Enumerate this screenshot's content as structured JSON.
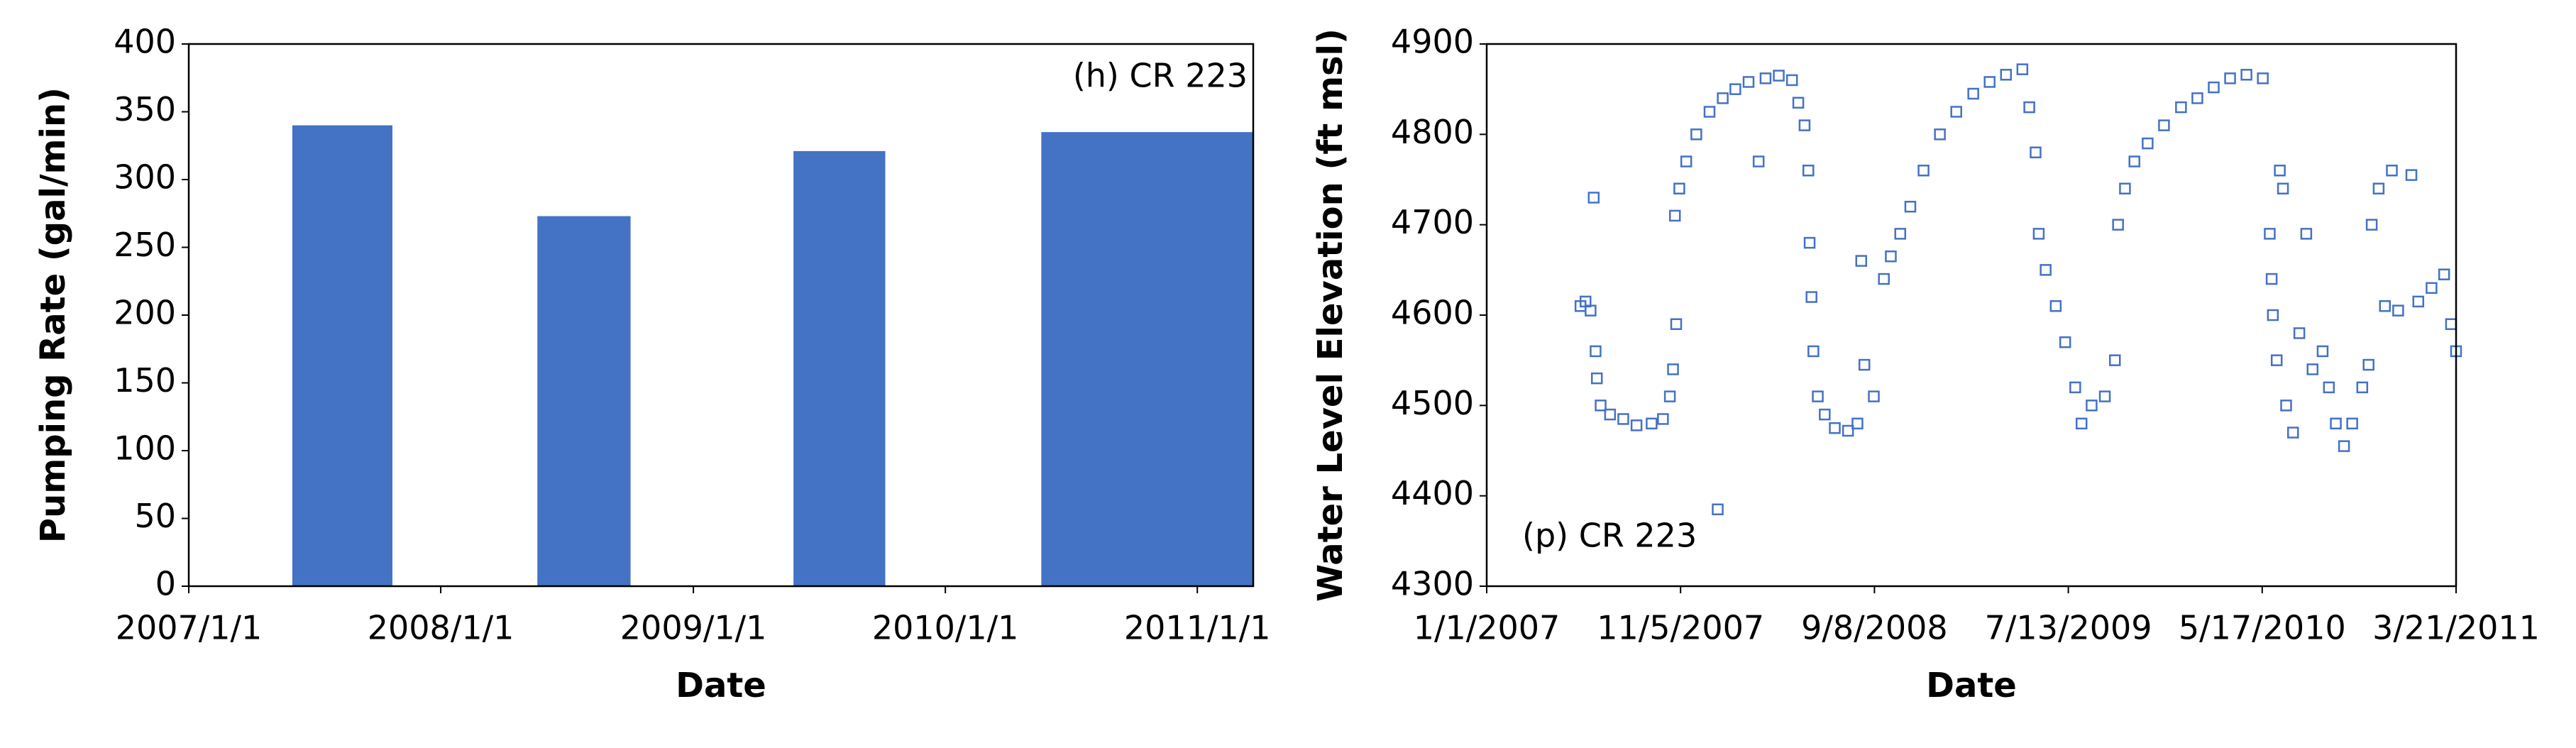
{
  "chart_data": [
    {
      "type": "bar",
      "annotation": "(h) CR 223",
      "xlabel": "Date",
      "ylabel": "Pumping Rate (gal/min)",
      "x_start": [
        "2007/5/31",
        "2008/5/20",
        "2009/5/26",
        "2010/5/20"
      ],
      "x_end": [
        "2007/10/23",
        "2008/10/2",
        "2009/10/6",
        "2011/3/23"
      ],
      "values": [
        340,
        273,
        321,
        335
      ],
      "color": "#4472c4",
      "xlim": [
        "2007/1/1",
        "2011/3/23"
      ],
      "xticks": [
        "2007/1/1",
        "2008/1/1",
        "2009/1/1",
        "2010/1/1",
        "2011/1/1"
      ],
      "ylim": [
        0,
        400
      ],
      "yticks": [
        0,
        50,
        100,
        150,
        200,
        250,
        300,
        350,
        400
      ],
      "grid": false
    },
    {
      "type": "scatter",
      "annotation": "(p) CR 223",
      "xlabel": "Date",
      "ylabel": "Water Level Elevation (ft msl)",
      "color": "#4472c4",
      "x": [
        "5/30/2007",
        "6/7/2007",
        "6/15/2007",
        "6/20/2007",
        "6/23/2007",
        "6/25/2007",
        "7/1/2007",
        "7/16/2007",
        "8/6/2007",
        "8/27/2007",
        "9/20/2007",
        "10/8/2007",
        "10/19/2007",
        "10/24/2007",
        "10/29/2007",
        "10/27/2007",
        "11/3/2007",
        "11/14/2007",
        "11/30/2007",
        "12/21/2007",
        "1/3/2008",
        "1/11/2008",
        "1/31/2008",
        "2/21/2008",
        "3/8/2008",
        "3/19/2008",
        "4/9/2008",
        "4/30/2008",
        "5/10/2008",
        "5/20/2008",
        "5/26/2008",
        "5/28/2008",
        "5/31/2008",
        "6/3/2008",
        "6/10/2008",
        "6/21/2008",
        "7/7/2008",
        "7/28/2008",
        "8/12/2008",
        "8/23/2008",
        "8/18/2008",
        "9/7/2008",
        "9/23/2008",
        "10/4/2008",
        "10/19/2008",
        "11/4/2008",
        "11/25/2008",
        "12/21/2008",
        "1/16/2009",
        "2/12/2009",
        "3/10/2009",
        "4/5/2009",
        "5/1/2009",
        "5/12/2009",
        "5/22/2009",
        "5/27/2009",
        "6/7/2009",
        "6/23/2009",
        "7/8/2009",
        "7/24/2009",
        "8/3/2009",
        "8/19/2009",
        "9/9/2009",
        "9/25/2009",
        "9/30/2009",
        "10/11/2009",
        "10/26/2009",
        "11/16/2009",
        "12/12/2009",
        "1/8/2010",
        "2/3/2010",
        "3/1/2010",
        "3/27/2010",
        "4/22/2010",
        "5/18/2010",
        "5/29/2010",
        "6/1/2010",
        "6/3/2010",
        "6/9/2010",
        "6/14/2010",
        "6/19/2010",
        "6/24/2010",
        "7/5/2010",
        "7/15/2010",
        "7/26/2010",
        "8/5/2010",
        "8/21/2010",
        "8/31/2010",
        "9/11/2010",
        "9/24/2010",
        "10/7/2010",
        "10/23/2010",
        "11/2/2010",
        "11/7/2010",
        "11/18/2010",
        "11/28/2010",
        "12/9/2010",
        "12/19/2010",
        "1/9/2011",
        "1/20/2011",
        "2/10/2011",
        "3/2/2011",
        "3/13/2011",
        "3/21/2011"
      ],
      "values": [
        4610,
        4615,
        4605,
        4730,
        4560,
        4530,
        4500,
        4490,
        4485,
        4478,
        4480,
        4485,
        4510,
        4540,
        4590,
        4710,
        4740,
        4770,
        4800,
        4825,
        4385,
        4840,
        4850,
        4858,
        4770,
        4862,
        4865,
        4860,
        4835,
        4810,
        4760,
        4680,
        4620,
        4560,
        4510,
        4490,
        4475,
        4472,
        4480,
        4545,
        4660,
        4510,
        4640,
        4665,
        4690,
        4720,
        4760,
        4800,
        4825,
        4845,
        4858,
        4866,
        4872,
        4830,
        4780,
        4690,
        4650,
        4610,
        4570,
        4520,
        4480,
        4500,
        4510,
        4550,
        4700,
        4740,
        4770,
        4790,
        4810,
        4830,
        4840,
        4852,
        4862,
        4866,
        4862,
        4690,
        4640,
        4600,
        4550,
        4760,
        4740,
        4500,
        4470,
        4580,
        4690,
        4540,
        4560,
        4520,
        4480,
        4455,
        4480,
        4520,
        4545,
        4700,
        4740,
        4610,
        4760,
        4605,
        4755,
        4615,
        4630,
        4645,
        4590,
        4560
      ],
      "xlim": [
        "1/1/2007",
        "3/21/2011"
      ],
      "xticks": [
        "1/1/2007",
        "11/5/2007",
        "9/8/2008",
        "7/13/2009",
        "5/17/2010",
        "3/21/2011"
      ],
      "ylim": [
        4300,
        4900
      ],
      "yticks": [
        4300,
        4400,
        4500,
        4600,
        4700,
        4800,
        4900
      ],
      "grid": false
    }
  ]
}
